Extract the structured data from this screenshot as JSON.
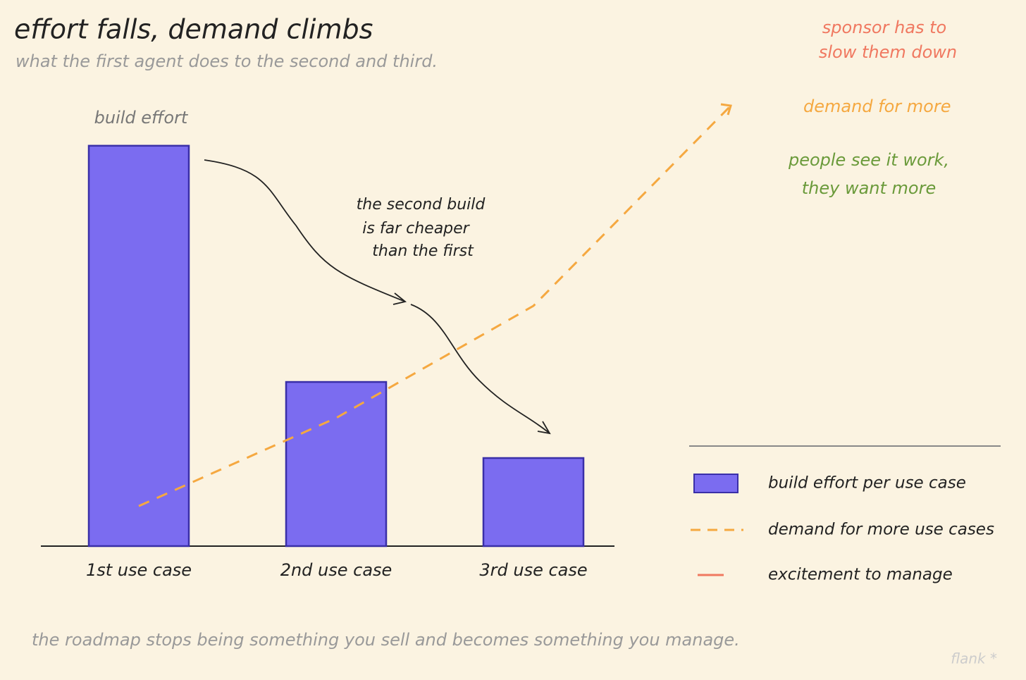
{
  "chart_data": {
    "type": "bar",
    "title": "effort falls, demand climbs",
    "subtitle": "what the first agent does to the second and third.",
    "categories": [
      "1st use case",
      "2nd use case",
      "3rd use case",
      null
    ],
    "series": [
      {
        "name": "build effort per use case",
        "type": "bar",
        "color": "#7b6cf0",
        "values": [
          100,
          41,
          22,
          null
        ]
      },
      {
        "name": "demand for more use cases",
        "type": "line",
        "color": "#f5a840",
        "values": [
          10,
          32,
          60,
          110
        ]
      }
    ],
    "extra_legend": [
      {
        "name": "excitement to manage",
        "color": "#f07860"
      }
    ],
    "annotations": {
      "bar_label": "build effort",
      "cheaper": [
        "the second build",
        "is far cheaper",
        "than the first"
      ],
      "sponsor": [
        "sponsor has to",
        "slow them down"
      ],
      "demand": "demand for more",
      "people": [
        "people see it work,",
        "they want more"
      ],
      "footer": "the roadmap stops being something you sell and becomes something you manage.",
      "signature": "flank *"
    }
  }
}
